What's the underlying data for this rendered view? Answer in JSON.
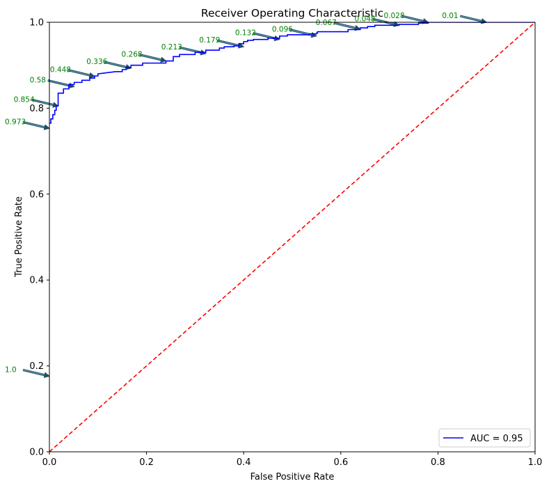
{
  "chart_data": {
    "type": "line",
    "title": "Receiver Operating Characteristic",
    "xlabel": "False Positive Rate",
    "ylabel": "True Positive Rate",
    "xlim": [
      0,
      1
    ],
    "ylim": [
      0,
      1
    ],
    "xticks": [
      "0.0",
      "0.2",
      "0.4",
      "0.6",
      "0.8",
      "1.0"
    ],
    "yticks": [
      "0.0",
      "0.2",
      "0.4",
      "0.6",
      "0.8",
      "1.0"
    ],
    "grid": false,
    "legend_position": "lower-right",
    "series": [
      {
        "name": "AUC = 0.95",
        "color": "#0000ff",
        "style": "solid",
        "x": [
          0,
          0,
          0.003,
          0.003,
          0.007,
          0.007,
          0.011,
          0.011,
          0.014,
          0.014,
          0.018,
          0.018,
          0.029,
          0.029,
          0.04,
          0.04,
          0.051,
          0.051,
          0.067,
          0.067,
          0.083,
          0.083,
          0.093,
          0.093,
          0.1,
          0.1,
          0.136,
          0.15,
          0.15,
          0.158,
          0.158,
          0.168,
          0.168,
          0.192,
          0.192,
          0.24,
          0.24,
          0.255,
          0.255,
          0.268,
          0.268,
          0.3,
          0.3,
          0.322,
          0.322,
          0.35,
          0.35,
          0.36,
          0.36,
          0.38,
          0.38,
          0.39,
          0.39,
          0.4,
          0.4,
          0.408,
          0.408,
          0.42,
          0.42,
          0.45,
          0.45,
          0.474,
          0.474,
          0.49,
          0.49,
          0.535,
          0.535,
          0.55,
          0.55,
          0.552,
          0.552,
          0.615,
          0.615,
          0.64,
          0.64,
          0.655,
          0.655,
          0.67,
          0.67,
          0.72,
          0.72,
          0.76,
          0.76,
          0.78,
          0.78,
          1.0
        ],
        "y": [
          0.765,
          0.765,
          0.765,
          0.775,
          0.775,
          0.785,
          0.785,
          0.795,
          0.795,
          0.805,
          0.805,
          0.835,
          0.835,
          0.845,
          0.845,
          0.855,
          0.855,
          0.86,
          0.86,
          0.865,
          0.865,
          0.87,
          0.87,
          0.875,
          0.875,
          0.88,
          0.885,
          0.885,
          0.89,
          0.89,
          0.895,
          0.895,
          0.9,
          0.9,
          0.905,
          0.905,
          0.91,
          0.91,
          0.92,
          0.92,
          0.925,
          0.925,
          0.93,
          0.93,
          0.935,
          0.935,
          0.94,
          0.94,
          0.943,
          0.943,
          0.945,
          0.945,
          0.95,
          0.95,
          0.955,
          0.955,
          0.958,
          0.958,
          0.96,
          0.96,
          0.963,
          0.963,
          0.968,
          0.968,
          0.971,
          0.971,
          0.973,
          0.973,
          0.975,
          0.975,
          0.978,
          0.978,
          0.983,
          0.983,
          0.987,
          0.987,
          0.99,
          0.99,
          0.993,
          0.993,
          0.995,
          0.995,
          0.998,
          0.998,
          1.0,
          1.0
        ]
      },
      {
        "color": "#ff0000",
        "style": "dashed",
        "x": [
          0,
          1
        ],
        "y": [
          0,
          1
        ]
      }
    ],
    "annotations": [
      {
        "text": "1.0",
        "x": 0.0,
        "y": 0.176
      },
      {
        "text": "0.973",
        "x": 0.0,
        "y": 0.753
      },
      {
        "text": "0.854",
        "x": 0.018,
        "y": 0.805
      },
      {
        "text": "0.58",
        "x": 0.051,
        "y": 0.85
      },
      {
        "text": "0.448",
        "x": 0.093,
        "y": 0.874
      },
      {
        "text": "0.336",
        "x": 0.168,
        "y": 0.893
      },
      {
        "text": "0.268",
        "x": 0.24,
        "y": 0.91
      },
      {
        "text": "0.213",
        "x": 0.322,
        "y": 0.927
      },
      {
        "text": "0.179",
        "x": 0.4,
        "y": 0.943
      },
      {
        "text": "0.132",
        "x": 0.474,
        "y": 0.96
      },
      {
        "text": "0.096",
        "x": 0.55,
        "y": 0.968
      },
      {
        "text": "0.067",
        "x": 0.64,
        "y": 0.984
      },
      {
        "text": "0.048",
        "x": 0.72,
        "y": 0.993
      },
      {
        "text": "0.028",
        "x": 0.78,
        "y": 1.0
      },
      {
        "text": "0.01",
        "x": 0.9,
        "y": 1.0
      }
    ],
    "annotation_color": "#008000",
    "arrow_color": "#1f4e5f"
  }
}
